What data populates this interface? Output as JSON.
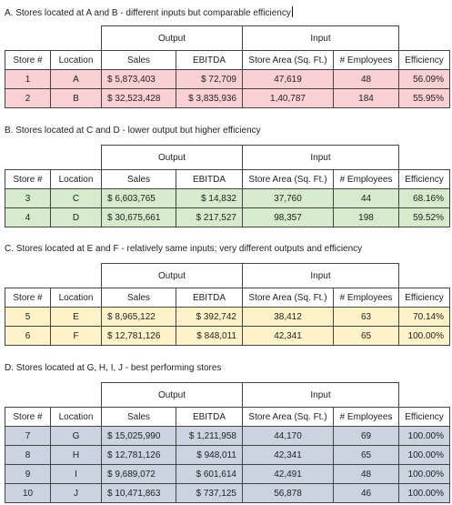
{
  "headers": {
    "output": "Output",
    "input": "Input",
    "store": "Store #",
    "location": "Location",
    "sales": "Sales",
    "ebitda": "EBITDA",
    "area": "Store Area (Sq. Ft.)",
    "employees": "# Employees",
    "efficiency": "Efficiency"
  },
  "sections": [
    {
      "title": "A.  Stores located at A and B - different inputs but comparable efficiency",
      "color": "#f9d0d3",
      "rows": [
        {
          "store": "1",
          "location": "A",
          "sales": "$ 5,873,403",
          "ebitda": "$ 72,709",
          "area": "47,619",
          "employees": "48",
          "efficiency": "56.09%"
        },
        {
          "store": "2",
          "location": "B",
          "sales": "$ 32,523,428",
          "ebitda": "$ 3,835,936",
          "area": "1,40,787",
          "employees": "184",
          "efficiency": "55.95%"
        }
      ]
    },
    {
      "title": "B.  Stores located at C and D - lower output but higher efficiency",
      "color": "#d6ebcc",
      "rows": [
        {
          "store": "3",
          "location": "C",
          "sales": "$ 6,603,765",
          "ebitda": "$ 14,832",
          "area": "37,760",
          "employees": "44",
          "efficiency": "68.16%"
        },
        {
          "store": "4",
          "location": "D",
          "sales": "$ 30,675,661",
          "ebitda": "$ 217,527",
          "area": "98,357",
          "employees": "198",
          "efficiency": "59.52%"
        }
      ]
    },
    {
      "title": "C.  Stores located at E and F - relatively same inputs; very different outputs and efficiency",
      "color": "#fef3c8",
      "rows": [
        {
          "store": "5",
          "location": "E",
          "sales": "$ 8,965,122",
          "ebitda": "$ 392,742",
          "area": "38,412",
          "employees": "63",
          "efficiency": "70.14%"
        },
        {
          "store": "6",
          "location": "F",
          "sales": "$ 12,781,126",
          "ebitda": "$ 848,011",
          "area": "42,341",
          "employees": "65",
          "efficiency": "100.00%"
        }
      ]
    },
    {
      "title": "D.  Stores located at G, H, I, J - best performing stores",
      "color": "#cbd3e0",
      "rows": [
        {
          "store": "7",
          "location": "G",
          "sales": "$ 15,025,990",
          "ebitda": "$ 1,211,958",
          "area": "44,170",
          "employees": "69",
          "efficiency": "100.00%"
        },
        {
          "store": "8",
          "location": "H",
          "sales": "$ 12,781,126",
          "ebitda": "$ 948,011",
          "area": "42,341",
          "employees": "65",
          "efficiency": "100.00%"
        },
        {
          "store": "9",
          "location": "I",
          "sales": "$ 9,689,072",
          "ebitda": "$ 601,614",
          "area": "42,491",
          "employees": "48",
          "efficiency": "100.00%"
        },
        {
          "store": "10",
          "location": "J",
          "sales": "$ 10,471,863",
          "ebitda": "$ 737,125",
          "area": "56,878",
          "employees": "46",
          "efficiency": "100.00%"
        }
      ]
    }
  ]
}
